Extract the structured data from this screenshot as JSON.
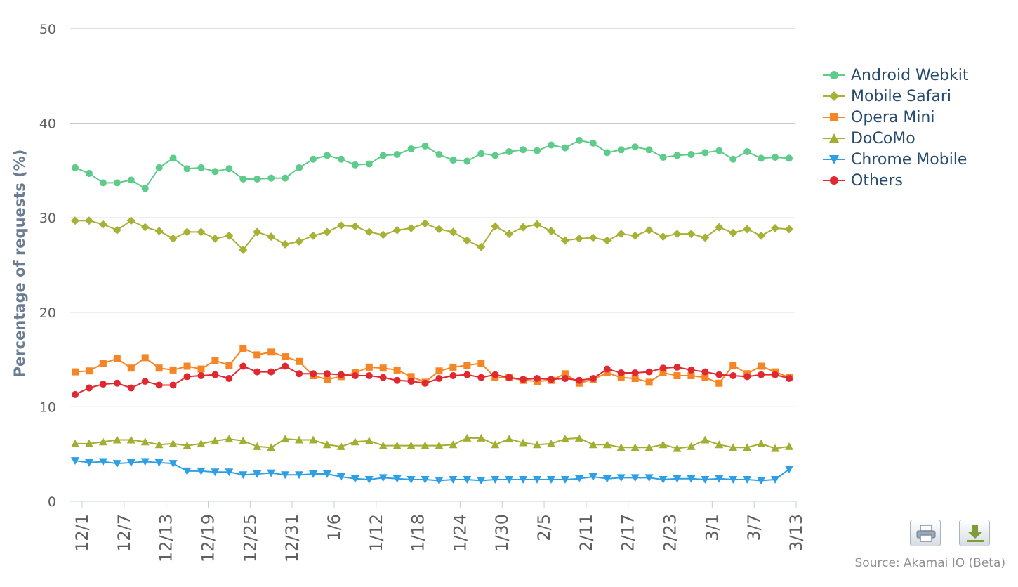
{
  "chart_data": {
    "type": "line",
    "ylabel": "Percentage of requests (%)",
    "ylim": [
      0,
      50
    ],
    "y_ticks": [
      "0",
      "10",
      "20",
      "30",
      "40",
      "50"
    ],
    "x_tick_labels": [
      "12/1",
      "12/7",
      "12/13",
      "12/19",
      "12/25",
      "12/31",
      "1/6",
      "1/12",
      "1/18",
      "1/24",
      "1/30",
      "2/5",
      "2/11",
      "2/17",
      "2/23",
      "3/1",
      "3/7",
      "3/13"
    ],
    "x_start_date": "2012-12-01",
    "x_step_days": 2,
    "grid": true,
    "legend_position": "right",
    "series": [
      {
        "name": "Android Webkit",
        "color": "#5fcb8a",
        "marker": "circle",
        "values": [
          35.3,
          34.7,
          33.7,
          33.7,
          34.0,
          33.1,
          35.3,
          36.3,
          35.2,
          35.3,
          34.9,
          35.2,
          34.1,
          34.1,
          34.2,
          34.2,
          35.3,
          36.2,
          36.6,
          36.2,
          35.6,
          35.7,
          36.6,
          36.7,
          37.3,
          37.6,
          36.7,
          36.1,
          36.0,
          36.8,
          36.6,
          37.0,
          37.2,
          37.1,
          37.7,
          37.4,
          38.2,
          37.9,
          36.9,
          37.2,
          37.5,
          37.2,
          36.4,
          36.6,
          36.7,
          36.9,
          37.1,
          36.2,
          37.0,
          36.3,
          36.4,
          36.3
        ]
      },
      {
        "name": "Mobile Safari",
        "color": "#a6b136",
        "marker": "diamond",
        "values": [
          29.7,
          29.7,
          29.3,
          28.7,
          29.7,
          29.0,
          28.6,
          27.8,
          28.5,
          28.5,
          27.8,
          28.1,
          26.6,
          28.5,
          28.0,
          27.2,
          27.5,
          28.1,
          28.5,
          29.2,
          29.1,
          28.5,
          28.2,
          28.7,
          28.9,
          29.4,
          28.8,
          28.5,
          27.6,
          26.9,
          29.1,
          28.3,
          29.0,
          29.3,
          28.6,
          27.6,
          27.8,
          27.9,
          27.6,
          28.3,
          28.1,
          28.7,
          28.0,
          28.3,
          28.3,
          27.9,
          29.0,
          28.4,
          28.8,
          28.1,
          28.9,
          28.8
        ]
      },
      {
        "name": "Opera Mini",
        "color": "#f68526",
        "marker": "square",
        "values": [
          13.7,
          13.8,
          14.6,
          15.1,
          14.1,
          15.2,
          14.1,
          13.9,
          14.3,
          14.0,
          14.9,
          14.4,
          16.2,
          15.5,
          15.8,
          15.3,
          14.8,
          13.3,
          12.9,
          13.2,
          13.6,
          14.2,
          14.1,
          13.9,
          13.2,
          12.6,
          13.8,
          14.2,
          14.4,
          14.6,
          13.1,
          13.1,
          12.8,
          12.7,
          12.8,
          13.5,
          12.5,
          12.9,
          13.6,
          13.1,
          13.0,
          12.6,
          13.6,
          13.3,
          13.3,
          13.1,
          12.5,
          14.4,
          13.5,
          14.3,
          13.7,
          13.1
        ]
      },
      {
        "name": "DoCoMo",
        "color": "#a2ae32",
        "marker": "triangle",
        "values": [
          6.1,
          6.1,
          6.3,
          6.5,
          6.5,
          6.3,
          6.0,
          6.1,
          5.9,
          6.1,
          6.4,
          6.6,
          6.4,
          5.8,
          5.7,
          6.6,
          6.5,
          6.5,
          6.0,
          5.8,
          6.3,
          6.4,
          5.9,
          5.9,
          5.9,
          5.9,
          5.9,
          6.0,
          6.7,
          6.7,
          6.0,
          6.6,
          6.2,
          6.0,
          6.1,
          6.6,
          6.7,
          6.0,
          6.0,
          5.7,
          5.7,
          5.7,
          6.0,
          5.6,
          5.8,
          6.5,
          6.0,
          5.7,
          5.7,
          6.1,
          5.6,
          5.8
        ]
      },
      {
        "name": "Chrome Mobile",
        "color": "#2e9fe3",
        "marker": "triangle-down",
        "values": [
          4.3,
          4.1,
          4.2,
          4.0,
          4.1,
          4.2,
          4.1,
          4.0,
          3.2,
          3.2,
          3.1,
          3.1,
          2.8,
          2.9,
          3.0,
          2.8,
          2.8,
          2.9,
          2.9,
          2.6,
          2.4,
          2.3,
          2.5,
          2.4,
          2.3,
          2.3,
          2.2,
          2.3,
          2.3,
          2.2,
          2.3,
          2.3,
          2.3,
          2.3,
          2.3,
          2.3,
          2.4,
          2.6,
          2.4,
          2.5,
          2.5,
          2.5,
          2.3,
          2.4,
          2.4,
          2.3,
          2.4,
          2.3,
          2.3,
          2.2,
          2.3,
          3.4
        ]
      },
      {
        "name": "Others",
        "color": "#e02831",
        "marker": "circle",
        "values": [
          11.3,
          12.0,
          12.4,
          12.5,
          12.0,
          12.7,
          12.3,
          12.3,
          13.2,
          13.3,
          13.4,
          13.0,
          14.3,
          13.7,
          13.7,
          14.3,
          13.5,
          13.5,
          13.5,
          13.4,
          13.3,
          13.3,
          13.1,
          12.8,
          12.7,
          12.5,
          13.0,
          13.3,
          13.4,
          13.1,
          13.4,
          13.1,
          12.9,
          13.0,
          12.9,
          13.0,
          12.8,
          13.0,
          14.0,
          13.6,
          13.6,
          13.7,
          14.1,
          14.2,
          13.9,
          13.7,
          13.4,
          13.3,
          13.2,
          13.4,
          13.4,
          13.0
        ]
      }
    ]
  },
  "export": {
    "print_label": "Print chart",
    "download_label": "Download chart"
  },
  "source": "Source: Akamai IO (Beta)"
}
